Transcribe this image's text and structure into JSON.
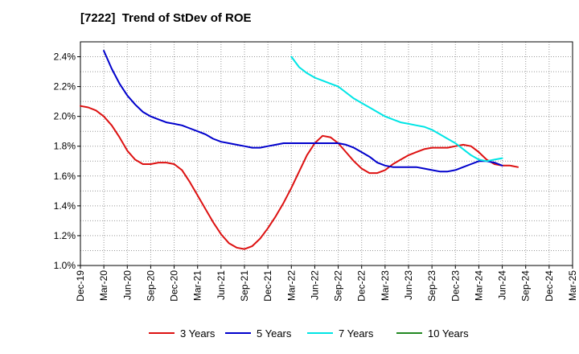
{
  "chart_data": {
    "type": "line",
    "title": "[7222]  Trend of StDev of ROE",
    "xlabel": "",
    "ylabel": "",
    "x_ticks": [
      "Dec-19",
      "Mar-20",
      "Jun-20",
      "Sep-20",
      "Dec-20",
      "Mar-21",
      "Jun-21",
      "Sep-21",
      "Dec-21",
      "Mar-22",
      "Jun-22",
      "Sep-22",
      "Dec-22",
      "Mar-23",
      "Jun-23",
      "Sep-23",
      "Dec-23",
      "Mar-24",
      "Jun-24",
      "Sep-24",
      "Dec-24",
      "Mar-25"
    ],
    "ylim": [
      1.0,
      2.5
    ],
    "y_ticks": [
      {
        "value": 1.0,
        "label": "1.0%"
      },
      {
        "value": 1.2,
        "label": "1.2%"
      },
      {
        "value": 1.4,
        "label": "1.4%"
      },
      {
        "value": 1.6,
        "label": "1.6%"
      },
      {
        "value": 1.8,
        "label": "1.8%"
      },
      {
        "value": 2.0,
        "label": "2.0%"
      },
      {
        "value": 2.2,
        "label": "2.2%"
      },
      {
        "value": 2.4,
        "label": "2.4%"
      }
    ],
    "grid": true,
    "legend_position": "bottom",
    "series": [
      {
        "name": "3 Years",
        "color": "#dd1111",
        "start_index": 0,
        "values": [
          2.07,
          2.06,
          2.04,
          2.0,
          1.94,
          1.86,
          1.77,
          1.71,
          1.68,
          1.68,
          1.69,
          1.69,
          1.68,
          1.64,
          1.56,
          1.47,
          1.38,
          1.29,
          1.21,
          1.15,
          1.12,
          1.11,
          1.13,
          1.18,
          1.25,
          1.33,
          1.42,
          1.52,
          1.63,
          1.74,
          1.82,
          1.87,
          1.86,
          1.82,
          1.76,
          1.7,
          1.65,
          1.62,
          1.62,
          1.64,
          1.68,
          1.71,
          1.74,
          1.76,
          1.78,
          1.79,
          1.79,
          1.79,
          1.8,
          1.81,
          1.8,
          1.76,
          1.71,
          1.68,
          1.67,
          1.67,
          1.66
        ]
      },
      {
        "name": "5 Years",
        "color": "#0000cc",
        "start_index": 3,
        "values": [
          2.44,
          2.32,
          2.22,
          2.14,
          2.08,
          2.03,
          2.0,
          1.98,
          1.96,
          1.95,
          1.94,
          1.92,
          1.9,
          1.88,
          1.85,
          1.83,
          1.82,
          1.81,
          1.8,
          1.79,
          1.79,
          1.8,
          1.81,
          1.82,
          1.82,
          1.82,
          1.82,
          1.82,
          1.82,
          1.82,
          1.82,
          1.81,
          1.79,
          1.76,
          1.73,
          1.69,
          1.67,
          1.66,
          1.66,
          1.66,
          1.66,
          1.65,
          1.64,
          1.63,
          1.63,
          1.64,
          1.66,
          1.68,
          1.7,
          1.7,
          1.69,
          1.67
        ]
      },
      {
        "name": "7 Years",
        "color": "#00e5e5",
        "start_index": 27,
        "values": [
          2.4,
          2.33,
          2.29,
          2.26,
          2.24,
          2.22,
          2.2,
          2.16,
          2.12,
          2.09,
          2.06,
          2.03,
          2.0,
          1.98,
          1.96,
          1.95,
          1.94,
          1.93,
          1.91,
          1.88,
          1.85,
          1.82,
          1.78,
          1.74,
          1.71,
          1.7,
          1.71,
          1.72
        ]
      },
      {
        "name": "10 Years",
        "color": "#228822",
        "start_index": 0,
        "values": []
      }
    ]
  }
}
